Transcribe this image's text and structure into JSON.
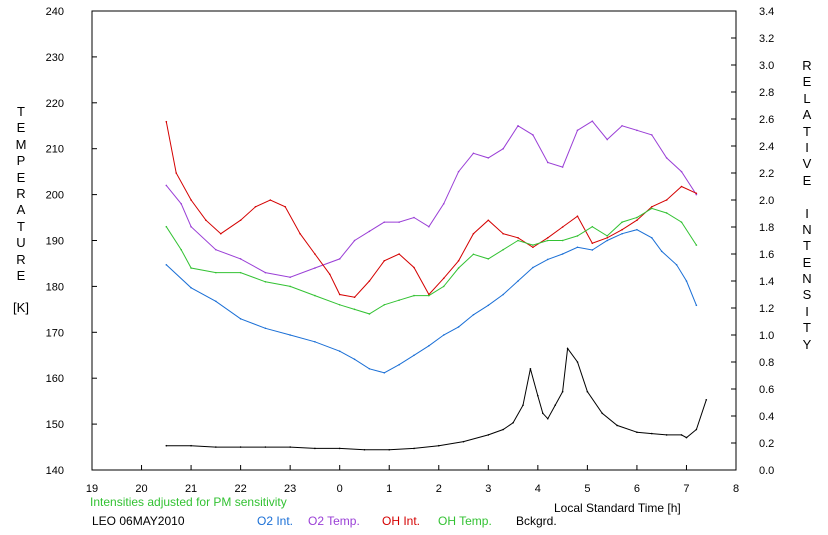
{
  "chart_data": {
    "type": "line",
    "y_left": {
      "label_letters": [
        "T",
        "E",
        "M",
        "P",
        "E",
        "R",
        "A",
        "T",
        "U",
        "R",
        "E"
      ],
      "unit": "[K]",
      "lim": [
        140,
        240
      ],
      "ticks": [
        "140",
        "150",
        "160",
        "170",
        "180",
        "190",
        "200",
        "210",
        "220",
        "230",
        "240"
      ]
    },
    "y_right": {
      "label_letters": [
        "R",
        "E",
        "L",
        "A",
        "T",
        "I",
        "V",
        "E",
        "",
        "I",
        "N",
        "T",
        "E",
        "N",
        "S",
        "I",
        "T",
        "Y"
      ],
      "lim": [
        0.0,
        3.4
      ],
      "ticks": [
        "0.0",
        "0.2",
        "0.4",
        "0.6",
        "0.8",
        "1.0",
        "1.2",
        "1.4",
        "1.6",
        "1.8",
        "2.0",
        "2.2",
        "2.4",
        "2.6",
        "2.8",
        "3.0",
        "3.2",
        "3.4"
      ]
    },
    "x_axis": {
      "label": "Local Standard Time [h]",
      "lim": [
        19,
        32
      ],
      "ticks": [
        "19",
        "20",
        "21",
        "22",
        "23",
        "0",
        "1",
        "2",
        "3",
        "4",
        "5",
        "6",
        "7",
        "8"
      ]
    },
    "note": "Intensities adjusted for PM sensitivity",
    "station": "LEO 06MAY2010",
    "grid": false,
    "series": [
      {
        "name": "O2 Int.",
        "color": "#1a6fd6",
        "axis": "right",
        "x": [
          20.5,
          21.0,
          21.5,
          22.0,
          22.5,
          23.0,
          23.5,
          24.0,
          24.3,
          24.6,
          24.9,
          25.2,
          25.5,
          25.8,
          26.1,
          26.4,
          26.7,
          27.0,
          27.3,
          27.6,
          27.9,
          28.2,
          28.5,
          28.8,
          29.1,
          29.4,
          29.7,
          30.0,
          30.3,
          30.5,
          30.8,
          31.0,
          31.2
        ],
        "y": [
          1.52,
          1.35,
          1.25,
          1.12,
          1.05,
          1.0,
          0.95,
          0.88,
          0.82,
          0.75,
          0.72,
          0.78,
          0.85,
          0.92,
          1.0,
          1.06,
          1.15,
          1.22,
          1.3,
          1.4,
          1.5,
          1.56,
          1.6,
          1.65,
          1.63,
          1.7,
          1.75,
          1.78,
          1.72,
          1.62,
          1.52,
          1.4,
          1.22
        ]
      },
      {
        "name": "O2 Temp.",
        "color": "#9a3fd6",
        "axis": "left",
        "x": [
          20.5,
          20.8,
          21.0,
          21.5,
          22.0,
          22.5,
          23.0,
          23.5,
          24.0,
          24.3,
          24.6,
          24.9,
          25.2,
          25.5,
          25.8,
          26.1,
          26.4,
          26.7,
          27.0,
          27.3,
          27.6,
          27.9,
          28.2,
          28.5,
          28.8,
          29.1,
          29.4,
          29.7,
          30.0,
          30.3,
          30.6,
          30.9,
          31.2
        ],
        "y": [
          202,
          198,
          193,
          188,
          186,
          183,
          182,
          184,
          186,
          190,
          192,
          194,
          194,
          195,
          193,
          198,
          205,
          209,
          208,
          210,
          215,
          213,
          207,
          206,
          214,
          216,
          212,
          215,
          214,
          213,
          208,
          205,
          200
        ]
      },
      {
        "name": "OH Int.",
        "color": "#d40000",
        "axis": "right",
        "x": [
          20.5,
          20.7,
          21.0,
          21.3,
          21.6,
          22.0,
          22.3,
          22.6,
          22.9,
          23.2,
          23.5,
          23.8,
          24.0,
          24.3,
          24.6,
          24.9,
          25.2,
          25.5,
          25.8,
          26.1,
          26.4,
          26.7,
          27.0,
          27.3,
          27.6,
          27.9,
          28.2,
          28.5,
          28.8,
          29.1,
          29.4,
          29.7,
          30.0,
          30.3,
          30.6,
          30.9,
          31.2
        ],
        "y": [
          2.58,
          2.2,
          2.0,
          1.85,
          1.75,
          1.85,
          1.95,
          2.0,
          1.95,
          1.75,
          1.6,
          1.45,
          1.3,
          1.28,
          1.4,
          1.55,
          1.6,
          1.5,
          1.3,
          1.42,
          1.55,
          1.75,
          1.85,
          1.75,
          1.72,
          1.65,
          1.72,
          1.8,
          1.88,
          1.68,
          1.72,
          1.78,
          1.85,
          1.95,
          2.0,
          2.1,
          2.05
        ]
      },
      {
        "name": "OH Temp.",
        "color": "#33c233",
        "axis": "left",
        "x": [
          20.5,
          20.8,
          21.0,
          21.5,
          22.0,
          22.5,
          23.0,
          23.5,
          24.0,
          24.3,
          24.6,
          24.9,
          25.2,
          25.5,
          25.8,
          26.1,
          26.4,
          26.7,
          27.0,
          27.3,
          27.6,
          27.9,
          28.2,
          28.5,
          28.8,
          29.1,
          29.4,
          29.7,
          30.0,
          30.3,
          30.6,
          30.9,
          31.2
        ],
        "y": [
          193,
          188,
          184,
          183,
          183,
          181,
          180,
          178,
          176,
          175,
          174,
          176,
          177,
          178,
          178,
          180,
          184,
          187,
          186,
          188,
          190,
          189,
          190,
          190,
          191,
          193,
          191,
          194,
          195,
          197,
          196,
          194,
          189
        ]
      },
      {
        "name": "Bckgrd.",
        "color": "#000000",
        "axis": "right",
        "x": [
          20.5,
          21.0,
          21.5,
          22.0,
          22.5,
          23.0,
          23.5,
          24.0,
          24.5,
          25.0,
          25.5,
          26.0,
          26.5,
          27.0,
          27.3,
          27.5,
          27.7,
          27.85,
          28.0,
          28.1,
          28.2,
          28.35,
          28.5,
          28.6,
          28.8,
          29.0,
          29.3,
          29.6,
          30.0,
          30.3,
          30.6,
          30.9,
          31.0,
          31.2,
          31.4
        ],
        "y": [
          0.18,
          0.18,
          0.17,
          0.17,
          0.17,
          0.17,
          0.16,
          0.16,
          0.15,
          0.15,
          0.16,
          0.18,
          0.21,
          0.26,
          0.3,
          0.35,
          0.48,
          0.75,
          0.55,
          0.42,
          0.38,
          0.48,
          0.58,
          0.9,
          0.8,
          0.58,
          0.42,
          0.33,
          0.28,
          0.27,
          0.26,
          0.26,
          0.24,
          0.3,
          0.52
        ]
      }
    ]
  }
}
